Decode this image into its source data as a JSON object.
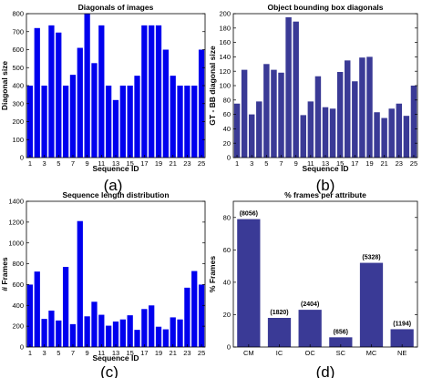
{
  "chart_data": [
    {
      "type": "bar",
      "title": "Diagonals of images",
      "xlabel": "Sequence ID",
      "ylabel": "Diagonal size",
      "panel_label": "(a)",
      "x_tick_labels": [
        "1",
        "3",
        "5",
        "7",
        "9",
        "11",
        "13",
        "15",
        "17",
        "19",
        "21",
        "23",
        "25"
      ],
      "y_ticks": [
        "0",
        "100",
        "200",
        "300",
        "400",
        "500",
        "600",
        "700",
        "800"
      ],
      "ylim": [
        0,
        800
      ],
      "xlim": [
        1,
        25
      ],
      "categories": [
        "1",
        "2",
        "3",
        "4",
        "5",
        "6",
        "7",
        "8",
        "9",
        "10",
        "11",
        "12",
        "13",
        "14",
        "15",
        "16",
        "17",
        "18",
        "19",
        "20",
        "21",
        "22",
        "23",
        "24",
        "25"
      ],
      "values": [
        400,
        720,
        400,
        735,
        695,
        400,
        460,
        610,
        800,
        525,
        735,
        400,
        320,
        400,
        400,
        455,
        735,
        735,
        735,
        600,
        455,
        400,
        400,
        400,
        600
      ],
      "bar_color": "#0000ee",
      "grid": false
    },
    {
      "type": "bar",
      "title": "Object bounding box diagonals",
      "xlabel": "Sequence ID",
      "ylabel": "GT - BB diagonal size",
      "panel_label": "(b)",
      "x_tick_labels": [
        "1",
        "3",
        "5",
        "7",
        "9",
        "11",
        "13",
        "15",
        "17",
        "19",
        "21",
        "23",
        "25"
      ],
      "y_ticks": [
        "0",
        "20",
        "40",
        "60",
        "80",
        "100",
        "120",
        "140",
        "160",
        "180",
        "200"
      ],
      "ylim": [
        0,
        200
      ],
      "xlim": [
        1,
        25
      ],
      "categories": [
        "1",
        "2",
        "3",
        "4",
        "5",
        "6",
        "7",
        "8",
        "9",
        "10",
        "11",
        "12",
        "13",
        "14",
        "15",
        "16",
        "17",
        "18",
        "19",
        "20",
        "21",
        "22",
        "23",
        "24",
        "25"
      ],
      "values": [
        75,
        122,
        60,
        78,
        130,
        122,
        118,
        195,
        189,
        59,
        78,
        113,
        70,
        68,
        119,
        135,
        106,
        139,
        140,
        63,
        55,
        68,
        75,
        58,
        100
      ],
      "bar_color": "#3a3a96",
      "grid": false
    },
    {
      "type": "bar",
      "title": "Sequence length distribution",
      "xlabel": "Sequence ID",
      "ylabel": "# Frames",
      "panel_label": "(c)",
      "x_tick_labels": [
        "1",
        "3",
        "5",
        "7",
        "9",
        "11",
        "13",
        "15",
        "17",
        "19",
        "21",
        "23",
        "25"
      ],
      "y_ticks": [
        "0",
        "200",
        "400",
        "600",
        "800",
        "1000",
        "1200",
        "1400"
      ],
      "ylim": [
        0,
        1400
      ],
      "xlim": [
        1,
        25
      ],
      "categories": [
        "1",
        "2",
        "3",
        "4",
        "5",
        "6",
        "7",
        "8",
        "9",
        "10",
        "11",
        "12",
        "13",
        "14",
        "15",
        "16",
        "17",
        "18",
        "19",
        "20",
        "21",
        "22",
        "23",
        "24",
        "25"
      ],
      "values": [
        600,
        725,
        270,
        350,
        255,
        770,
        220,
        1210,
        295,
        435,
        310,
        205,
        245,
        265,
        305,
        165,
        365,
        400,
        195,
        170,
        285,
        265,
        570,
        730,
        600
      ],
      "bar_color": "#0000ee",
      "grid": false
    },
    {
      "type": "bar",
      "title": "% frames per attribute",
      "xlabel": "",
      "ylabel": "% Frames",
      "panel_label": "(d)",
      "y_ticks": [
        "0",
        "20",
        "40",
        "60",
        "80"
      ],
      "ylim": [
        0,
        90
      ],
      "categories": [
        "CM",
        "IC",
        "OC",
        "SC",
        "MC",
        "NE"
      ],
      "values": [
        79,
        18,
        23,
        6,
        52,
        11
      ],
      "data_labels": [
        "(8056)",
        "(1820)",
        "(2404)",
        "(656)",
        "(5328)",
        "(1194)"
      ],
      "bar_color": "#3a3a96",
      "grid": false
    }
  ]
}
